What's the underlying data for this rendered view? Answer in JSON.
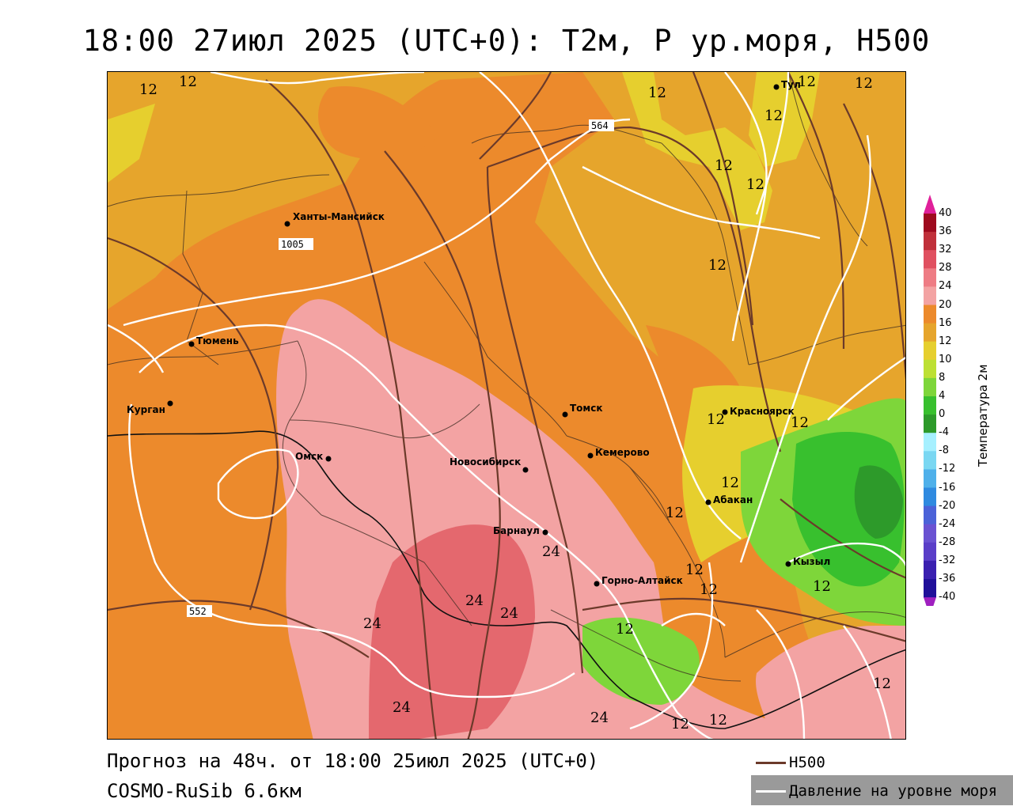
{
  "title": "18:00 27июл 2025 (UTC+0): T2м, P ур.моря, H500",
  "forecast_line": "Прогноз на 48ч. от 18:00 25июл 2025 (UTC+0)",
  "model_line": "COSMO-RuSib 6.6км",
  "legend": {
    "h500_label": "H500",
    "h500_color": "#6b3a2a",
    "pressure_label": "Давление на уровне моря",
    "pressure_color": "#ffffff"
  },
  "colorbar": {
    "title": "Температура 2м",
    "ticks": [
      "40",
      "36",
      "32",
      "28",
      "24",
      "20",
      "16",
      "12",
      "10",
      "8",
      "4",
      "0",
      "-4",
      "-8",
      "-12",
      "-16",
      "-20",
      "-24",
      "-28",
      "-32",
      "-36",
      "-40"
    ],
    "colors": [
      "#9e0a1e",
      "#c0303a",
      "#e05060",
      "#ee7c84",
      "#f3a3a3",
      "#ec8a2c",
      "#e6a52c",
      "#e6cf2e",
      "#bde034",
      "#7ed63a",
      "#38c02e",
      "#2d9a2a",
      "#a6f0ff",
      "#7ad7f2",
      "#4fb0ea",
      "#2f8ae0",
      "#4b62d8",
      "#6a52d2",
      "#5a3ec8",
      "#3a20b0",
      "#20109a"
    ],
    "top_color": "#e0209a",
    "bottom_color": "#a020c0"
  },
  "cities": [
    {
      "name": "Ханты-Мансийск"
    },
    {
      "name": "Тюмень"
    },
    {
      "name": "Курган"
    },
    {
      "name": "Омск"
    },
    {
      "name": "Новосибирск"
    },
    {
      "name": "Томск"
    },
    {
      "name": "Кемерово"
    },
    {
      "name": "Барнаул"
    },
    {
      "name": "Горно-Алтайск"
    },
    {
      "name": "Абакан"
    },
    {
      "name": "Красноярск"
    },
    {
      "name": "Кызыл"
    },
    {
      "name": "Тул"
    }
  ],
  "isoline_labels": {
    "h500": [
      "564",
      "552"
    ],
    "pressure": [
      "1005"
    ],
    "temperature": [
      "12",
      "24"
    ]
  }
}
